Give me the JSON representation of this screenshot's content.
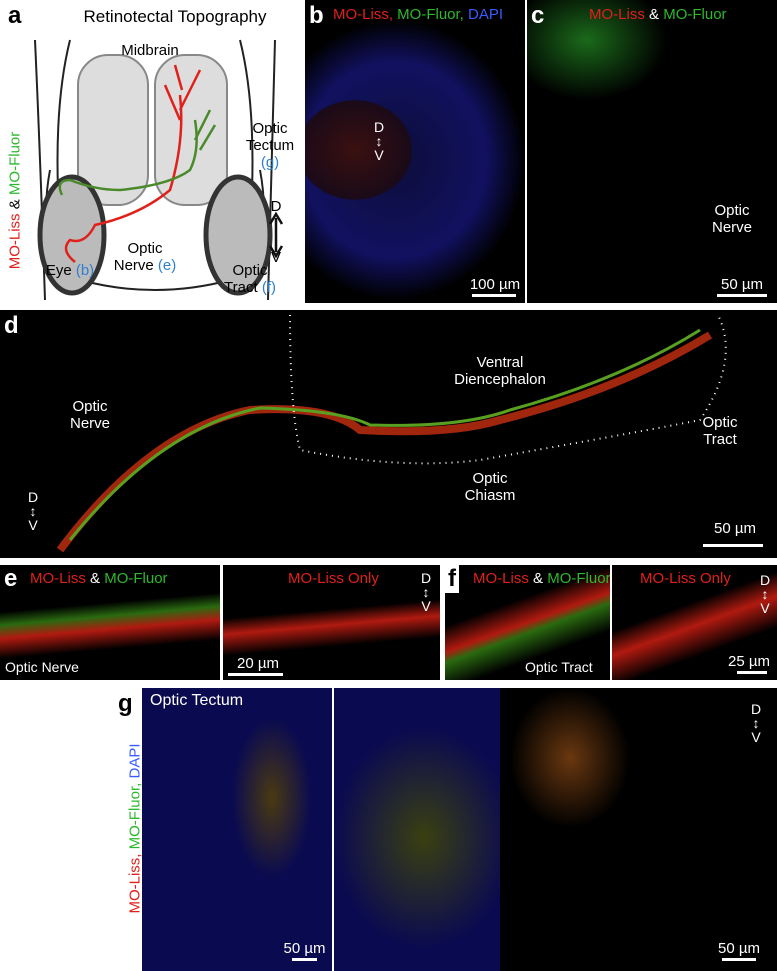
{
  "panels": {
    "a": {
      "letter": "a",
      "title": "Retinotectal Topography",
      "midbrain": "Midbrain",
      "tectum": [
        "Optic",
        "Tectum"
      ],
      "tectum_ref": "(g)",
      "eye": "Eye",
      "eye_ref": "(b)",
      "nerve": [
        "Optic",
        "Nerve"
      ],
      "nerve_ref": "(e)",
      "tract": [
        "Optic",
        "Tract"
      ],
      "tract_ref": "(f)",
      "dye_red": "MO-Liss",
      "dye_join": "&",
      "dye_green": "MO-Fluor",
      "d": "D",
      "v": "V"
    },
    "b": {
      "letter": "b",
      "red": "MO-Liss,",
      "green": "MO-Fluor,",
      "blue": "DAPI",
      "d": "D",
      "v": "V",
      "scale": "100 µm"
    },
    "c": {
      "letter": "c",
      "red": "MO-Liss",
      "join": "&",
      "green": "MO-Fluor",
      "label": [
        "Optic",
        "Nerve"
      ],
      "scale": "50 µm"
    },
    "d": {
      "letter": "d",
      "region": [
        "Ventral",
        "Diencephalon"
      ],
      "nerve": [
        "Optic",
        "Nerve"
      ],
      "tract": [
        "Optic",
        "Tract"
      ],
      "chiasm": [
        "Optic",
        "Chiasm"
      ],
      "d": "D",
      "v": "V",
      "scale": "50 µm"
    },
    "e": {
      "letter": "e",
      "red": "MO-Liss",
      "join": "&",
      "green": "MO-Fluor",
      "only": "MO-Liss Only",
      "d": "D",
      "v": "V",
      "label": "Optic Nerve",
      "scale": "20 µm"
    },
    "f": {
      "letter": "f",
      "red": "MO-Liss",
      "join": "&",
      "green": "MO-Fluor",
      "only": "MO-Liss Only",
      "d": "D",
      "v": "V",
      "label": "Optic Tract",
      "scale": "25 µm"
    },
    "g": {
      "letter": "g",
      "title": "Optic Tectum",
      "red": "MO-Liss,",
      "green": "MO-Fluor,",
      "blue": "DAPI",
      "d": "D",
      "v": "V",
      "scale_left": "50 µm",
      "scale_right": "50 µm"
    }
  }
}
